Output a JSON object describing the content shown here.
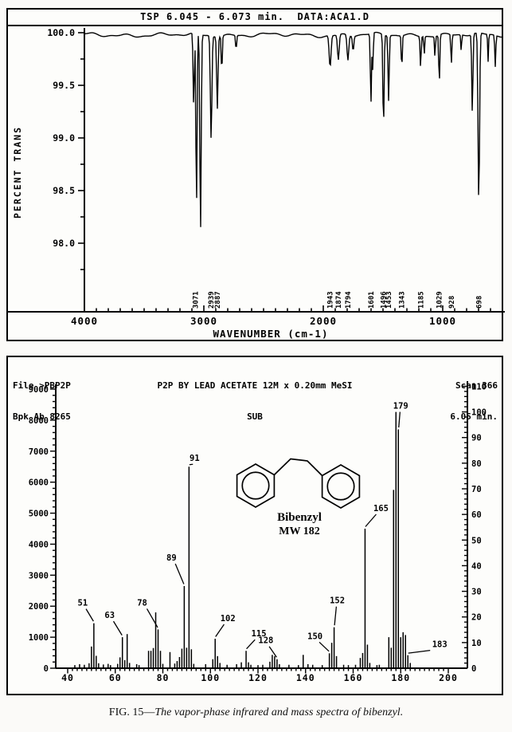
{
  "figure": {
    "caption_prefix": "FIG. 15—",
    "caption_italic": "The vapor-phase infrared and mass spectra of bibenzyl."
  },
  "chart_data": [
    {
      "type": "line",
      "instrument": "vapor-phase infrared spectrum",
      "title": "TSP 6.045 - 6.073 min.  DATA:ACA1.D",
      "ylabel": "PERCENT TRANS",
      "xlabel": "WAVENUMBER (cm-1)",
      "y_ticks": [
        "100.0",
        "99.5",
        "99.0",
        "98.5",
        "98.0"
      ],
      "x_ticks": [
        4000,
        3000,
        2000,
        1000
      ],
      "xlim": [
        4000,
        500
      ],
      "ylim": [
        97.8,
        100.1
      ],
      "baseline_percent_trans": 100.0,
      "band_labels": [
        "3071",
        "2939",
        "2887",
        "1943",
        "1874",
        "1794",
        "1601",
        "1496",
        "1453",
        "1343",
        "1185",
        "1029",
        "928",
        "698"
      ],
      "bands_wavenumber_trans_width": [
        [
          3085,
          99.3,
          7
        ],
        [
          3062,
          98.3,
          7
        ],
        [
          3028,
          98.12,
          8
        ],
        [
          2939,
          99.02,
          9
        ],
        [
          2887,
          99.32,
          8
        ],
        [
          2850,
          99.65,
          6
        ],
        [
          2730,
          99.86,
          6
        ],
        [
          1943,
          99.7,
          11
        ],
        [
          1874,
          99.76,
          10
        ],
        [
          1794,
          99.76,
          10
        ],
        [
          1750,
          99.86,
          8
        ],
        [
          1601,
          99.34,
          7
        ],
        [
          1585,
          99.62,
          5
        ],
        [
          1496,
          99.1,
          7
        ],
        [
          1453,
          99.38,
          7
        ],
        [
          1343,
          99.68,
          6
        ],
        [
          1185,
          99.7,
          6
        ],
        [
          1155,
          99.82,
          5
        ],
        [
          1065,
          99.8,
          5
        ],
        [
          1029,
          99.52,
          6
        ],
        [
          928,
          99.72,
          6
        ],
        [
          845,
          99.84,
          5
        ],
        [
          752,
          99.25,
          7
        ],
        [
          698,
          98.38,
          9
        ],
        [
          620,
          99.74,
          5
        ],
        [
          560,
          99.7,
          6
        ],
        [
          490,
          99.58,
          6
        ]
      ]
    },
    {
      "type": "bar",
      "instrument": "electron-impact mass spectrum",
      "file_line": "File >PBP2P",
      "bpk_line": "Bpk Ab 8265",
      "title": "P2P BY LEAD ACETATE 12M x 0.20mm MeSI",
      "subtitle": "SUB",
      "scan_line": "Scan 366",
      "rt_line": "6.05 min.",
      "xlim": [
        40,
        200
      ],
      "x_ticks": [
        "40",
        "60",
        "80",
        "100",
        "120",
        "140",
        "160",
        "180",
        "200"
      ],
      "left_axis_ticks": [
        "9000",
        "8000",
        "7000",
        "6000",
        "5000",
        "4000",
        "3000",
        "2000",
        "1000",
        "0"
      ],
      "left_axis_max": 9000,
      "right_axis_ticks": [
        "110",
        "100",
        "90",
        "80",
        "70",
        "60",
        "50",
        "40",
        "30",
        "20",
        "10",
        "0"
      ],
      "right_axis_unit": "percent relative abundance",
      "base_peak_abundance": 8265,
      "peaks_mz_abundance": [
        [
          43,
          100
        ],
        [
          45,
          130
        ],
        [
          47,
          110
        ],
        [
          49,
          160
        ],
        [
          50,
          700
        ],
        [
          51,
          1450
        ],
        [
          52,
          400
        ],
        [
          53,
          160
        ],
        [
          55,
          120
        ],
        [
          57,
          140
        ],
        [
          58,
          100
        ],
        [
          61,
          140
        ],
        [
          62,
          350
        ],
        [
          63,
          1000
        ],
        [
          64,
          260
        ],
        [
          65,
          1100
        ],
        [
          66,
          170
        ],
        [
          69,
          130
        ],
        [
          70,
          100
        ],
        [
          74,
          560
        ],
        [
          75,
          560
        ],
        [
          76,
          650
        ],
        [
          77,
          1800
        ],
        [
          78,
          1250
        ],
        [
          79,
          560
        ],
        [
          80,
          140
        ],
        [
          83,
          520
        ],
        [
          85,
          150
        ],
        [
          86,
          230
        ],
        [
          87,
          360
        ],
        [
          88,
          630
        ],
        [
          89,
          2650
        ],
        [
          90,
          660
        ],
        [
          91,
          6500
        ],
        [
          92,
          610
        ],
        [
          93,
          140
        ],
        [
          98,
          130
        ],
        [
          101,
          290
        ],
        [
          102,
          950
        ],
        [
          103,
          390
        ],
        [
          104,
          170
        ],
        [
          107,
          110
        ],
        [
          111,
          130
        ],
        [
          113,
          190
        ],
        [
          115,
          560
        ],
        [
          116,
          190
        ],
        [
          117,
          110
        ],
        [
          120,
          100
        ],
        [
          122,
          110
        ],
        [
          125,
          210
        ],
        [
          126,
          430
        ],
        [
          127,
          390
        ],
        [
          128,
          290
        ],
        [
          129,
          130
        ],
        [
          133,
          110
        ],
        [
          137,
          100
        ],
        [
          139,
          430
        ],
        [
          141,
          130
        ],
        [
          143,
          110
        ],
        [
          147,
          100
        ],
        [
          150,
          480
        ],
        [
          151,
          820
        ],
        [
          152,
          1320
        ],
        [
          153,
          390
        ],
        [
          156,
          110
        ],
        [
          158,
          100
        ],
        [
          161,
          110
        ],
        [
          163,
          330
        ],
        [
          164,
          490
        ],
        [
          165,
          4500
        ],
        [
          166,
          760
        ],
        [
          167,
          170
        ],
        [
          170,
          100
        ],
        [
          171,
          110
        ],
        [
          175,
          1000
        ],
        [
          176,
          660
        ],
        [
          177,
          5750
        ],
        [
          178,
          8265
        ],
        [
          179,
          7700
        ],
        [
          180,
          1000
        ],
        [
          181,
          1160
        ],
        [
          182,
          1070
        ],
        [
          183,
          420
        ],
        [
          184,
          170
        ]
      ],
      "peak_labels": [
        {
          "text": "51",
          "mz": 51
        },
        {
          "text": "63",
          "mz": 63
        },
        {
          "text": "78",
          "mz": 78
        },
        {
          "text": "89",
          "mz": 89
        },
        {
          "text": "91",
          "mz": 91
        },
        {
          "text": "102",
          "mz": 102
        },
        {
          "text": "115",
          "mz": 115
        },
        {
          "text": "128",
          "mz": 128
        },
        {
          "text": "150",
          "mz": 150
        },
        {
          "text": "152",
          "mz": 152
        },
        {
          "text": "165",
          "mz": 165
        },
        {
          "text": "179",
          "mz": 179
        },
        {
          "text": "183",
          "mz": 183
        }
      ],
      "molecule": {
        "name": "Bibenzyl",
        "mw_label": "MW 182"
      }
    }
  ]
}
